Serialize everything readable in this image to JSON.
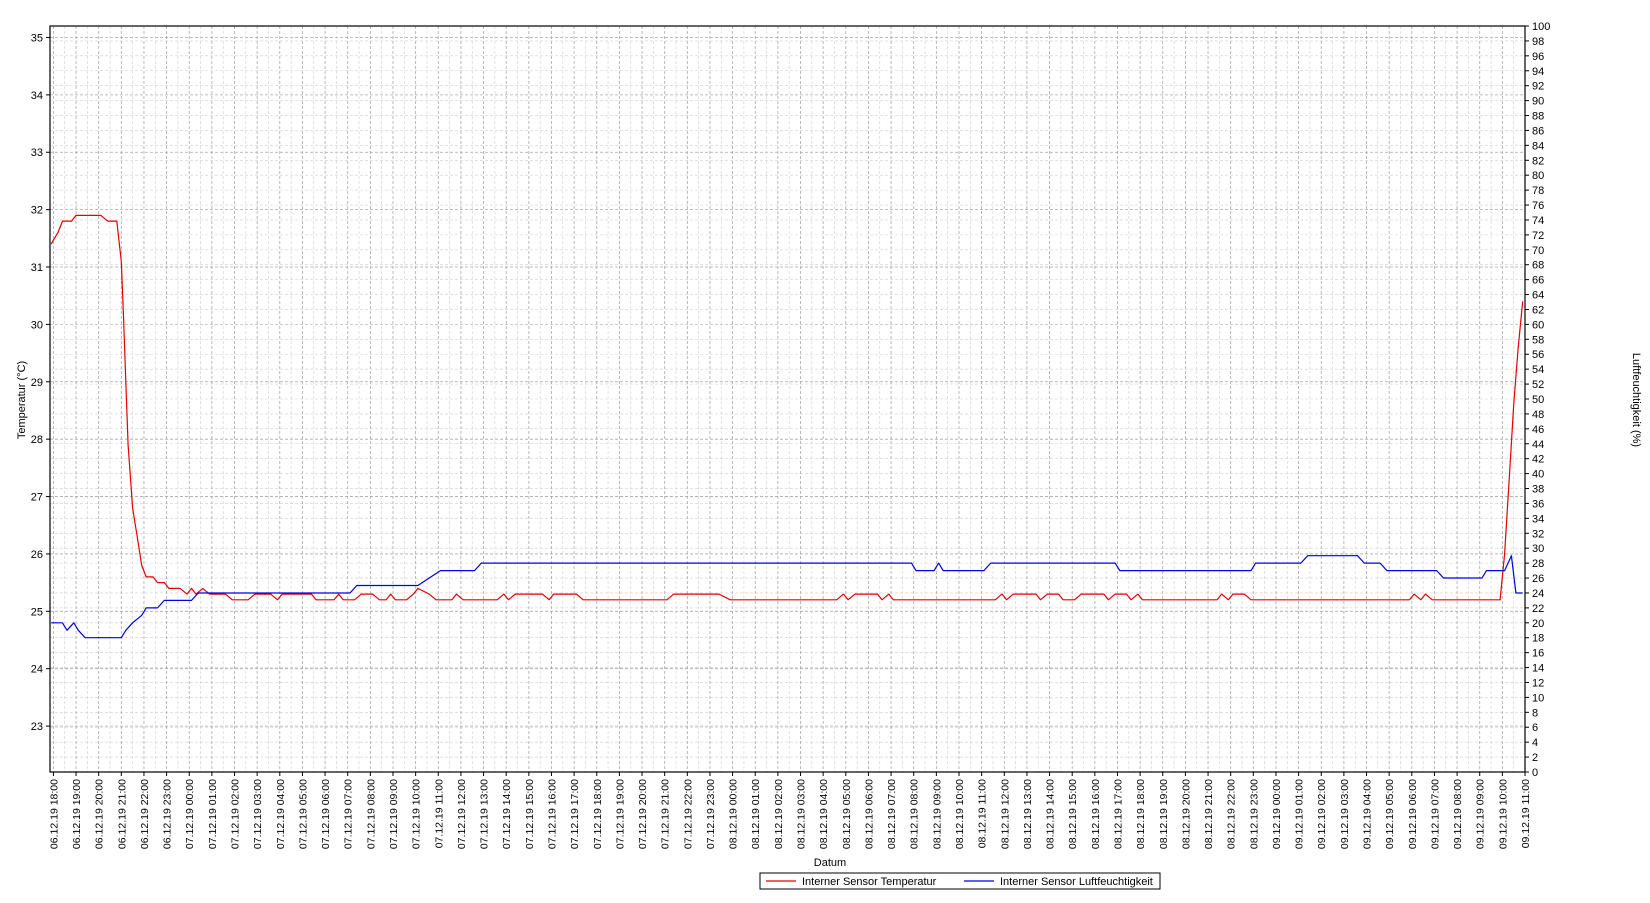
{
  "chart_data": {
    "type": "line",
    "title": "",
    "xlabel": "Datum",
    "ylabel": "Temperatur (°C)",
    "y2label": "Luftfeuchtigkeit (%)",
    "ylim": [
      22.2,
      35.2
    ],
    "y2lim": [
      0,
      100
    ],
    "y_ticks": [
      "23",
      "24",
      "25",
      "26",
      "27",
      "28",
      "29",
      "30",
      "31",
      "32",
      "33",
      "34",
      "35"
    ],
    "y2_ticks": [
      "0",
      "2",
      "4",
      "6",
      "8",
      "10",
      "12",
      "14",
      "16",
      "18",
      "20",
      "22",
      "24",
      "26",
      "28",
      "30",
      "32",
      "34",
      "36",
      "38",
      "40",
      "42",
      "44",
      "46",
      "48",
      "50",
      "52",
      "54",
      "56",
      "58",
      "60",
      "62",
      "64",
      "66",
      "68",
      "70",
      "72",
      "74",
      "76",
      "78",
      "80",
      "82",
      "84",
      "86",
      "88",
      "90",
      "92",
      "94",
      "96",
      "98",
      "100"
    ],
    "x_ticks": [
      "06.12.19 18:00",
      "06.12.19 19:00",
      "06.12.19 20:00",
      "06.12.19 21:00",
      "06.12.19 22:00",
      "06.12.19 23:00",
      "07.12.19 00:00",
      "07.12.19 01:00",
      "07.12.19 02:00",
      "07.12.19 03:00",
      "07.12.19 04:00",
      "07.12.19 05:00",
      "07.12.19 06:00",
      "07.12.19 07:00",
      "07.12.19 08:00",
      "07.12.19 09:00",
      "07.12.19 10:00",
      "07.12.19 11:00",
      "07.12.19 12:00",
      "07.12.19 13:00",
      "07.12.19 14:00",
      "07.12.19 15:00",
      "07.12.19 16:00",
      "07.12.19 17:00",
      "07.12.19 18:00",
      "07.12.19 19:00",
      "07.12.19 20:00",
      "07.12.19 21:00",
      "07.12.19 22:00",
      "07.12.19 23:00",
      "08.12.19 00:00",
      "08.12.19 01:00",
      "08.12.19 02:00",
      "08.12.19 03:00",
      "08.12.19 04:00",
      "08.12.19 05:00",
      "08.12.19 06:00",
      "08.12.19 07:00",
      "08.12.19 08:00",
      "08.12.19 09:00",
      "08.12.19 10:00",
      "08.12.19 11:00",
      "08.12.19 12:00",
      "08.12.19 13:00",
      "08.12.19 14:00",
      "08.12.19 15:00",
      "08.12.19 16:00",
      "08.12.19 17:00",
      "08.12.19 18:00",
      "08.12.19 19:00",
      "08.12.19 20:00",
      "08.12.19 21:00",
      "08.12.19 22:00",
      "08.12.19 23:00",
      "09.12.19 00:00",
      "09.12.19 01:00",
      "09.12.19 02:00",
      "09.12.19 03:00",
      "09.12.19 04:00",
      "09.12.19 05:00",
      "09.12.19 06:00",
      "09.12.19 07:00",
      "09.12.19 08:00",
      "09.12.19 09:00",
      "09.12.19 10:00",
      "09.12.19 11:00"
    ],
    "x_range_hours": [
      -0.15,
      65.0
    ],
    "grid": true,
    "legend_position": "bottom-center",
    "series": [
      {
        "name": "Interner Sensor Temperatur",
        "color": "#e60000",
        "axis": "left",
        "points": [
          [
            -0.1,
            31.4
          ],
          [
            0.2,
            31.6
          ],
          [
            0.4,
            31.8
          ],
          [
            0.8,
            31.8
          ],
          [
            1.0,
            31.9
          ],
          [
            2.0,
            31.9
          ],
          [
            2.1,
            31.9
          ],
          [
            2.4,
            31.8
          ],
          [
            2.8,
            31.8
          ],
          [
            3.0,
            31.1
          ],
          [
            3.1,
            30.1
          ],
          [
            3.2,
            29.0
          ],
          [
            3.3,
            27.9
          ],
          [
            3.5,
            26.8
          ],
          [
            3.7,
            26.3
          ],
          [
            3.9,
            25.8
          ],
          [
            4.1,
            25.6
          ],
          [
            4.4,
            25.6
          ],
          [
            4.6,
            25.5
          ],
          [
            4.9,
            25.5
          ],
          [
            5.1,
            25.4
          ],
          [
            5.6,
            25.4
          ],
          [
            5.9,
            25.3
          ],
          [
            6.1,
            25.4
          ],
          [
            6.3,
            25.3
          ],
          [
            6.6,
            25.4
          ],
          [
            6.9,
            25.3
          ],
          [
            7.6,
            25.3
          ],
          [
            7.9,
            25.2
          ],
          [
            8.6,
            25.2
          ],
          [
            8.9,
            25.3
          ],
          [
            9.6,
            25.3
          ],
          [
            9.9,
            25.2
          ],
          [
            10.1,
            25.3
          ],
          [
            11.4,
            25.3
          ],
          [
            11.6,
            25.2
          ],
          [
            12.4,
            25.2
          ],
          [
            12.6,
            25.3
          ],
          [
            12.8,
            25.2
          ],
          [
            13.3,
            25.2
          ],
          [
            13.6,
            25.3
          ],
          [
            14.1,
            25.3
          ],
          [
            14.4,
            25.2
          ],
          [
            14.7,
            25.2
          ],
          [
            14.9,
            25.3
          ],
          [
            15.1,
            25.2
          ],
          [
            15.6,
            25.2
          ],
          [
            15.9,
            25.3
          ],
          [
            16.1,
            25.4
          ],
          [
            16.6,
            25.3
          ],
          [
            16.9,
            25.2
          ],
          [
            17.6,
            25.2
          ],
          [
            17.8,
            25.3
          ],
          [
            18.1,
            25.2
          ],
          [
            19.6,
            25.2
          ],
          [
            19.9,
            25.3
          ],
          [
            20.1,
            25.2
          ],
          [
            20.4,
            25.3
          ],
          [
            21.6,
            25.3
          ],
          [
            21.9,
            25.2
          ],
          [
            22.1,
            25.3
          ],
          [
            23.1,
            25.3
          ],
          [
            23.4,
            25.2
          ],
          [
            27.1,
            25.2
          ],
          [
            27.4,
            25.3
          ],
          [
            29.4,
            25.3
          ],
          [
            29.9,
            25.2
          ],
          [
            34.6,
            25.2
          ],
          [
            34.9,
            25.3
          ],
          [
            35.1,
            25.2
          ],
          [
            35.4,
            25.3
          ],
          [
            36.4,
            25.3
          ],
          [
            36.6,
            25.2
          ],
          [
            36.9,
            25.3
          ],
          [
            37.1,
            25.2
          ],
          [
            41.6,
            25.2
          ],
          [
            41.9,
            25.3
          ],
          [
            42.1,
            25.2
          ],
          [
            42.4,
            25.3
          ],
          [
            43.4,
            25.3
          ],
          [
            43.6,
            25.2
          ],
          [
            43.9,
            25.3
          ],
          [
            44.4,
            25.3
          ],
          [
            44.6,
            25.2
          ],
          [
            45.1,
            25.2
          ],
          [
            45.4,
            25.3
          ],
          [
            46.4,
            25.3
          ],
          [
            46.6,
            25.2
          ],
          [
            46.9,
            25.3
          ],
          [
            47.4,
            25.3
          ],
          [
            47.6,
            25.2
          ],
          [
            47.9,
            25.3
          ],
          [
            48.1,
            25.2
          ],
          [
            51.4,
            25.2
          ],
          [
            51.6,
            25.3
          ],
          [
            51.9,
            25.2
          ],
          [
            52.1,
            25.3
          ],
          [
            52.6,
            25.3
          ],
          [
            52.9,
            25.2
          ],
          [
            59.9,
            25.2
          ],
          [
            60.1,
            25.3
          ],
          [
            60.4,
            25.2
          ],
          [
            60.6,
            25.3
          ],
          [
            60.9,
            25.2
          ],
          [
            63.9,
            25.2
          ],
          [
            64.1,
            26.0
          ],
          [
            64.3,
            27.3
          ],
          [
            64.5,
            28.6
          ],
          [
            64.7,
            29.6
          ],
          [
            64.9,
            30.4
          ]
        ]
      },
      {
        "name": "Interner Sensor Luftfeuchtigkeit",
        "color": "#0000e6",
        "axis": "right",
        "points": [
          [
            -0.1,
            20
          ],
          [
            0.4,
            20
          ],
          [
            0.6,
            19
          ],
          [
            0.9,
            20
          ],
          [
            1.1,
            19
          ],
          [
            1.4,
            18
          ],
          [
            3.0,
            18
          ],
          [
            3.2,
            19
          ],
          [
            3.5,
            20
          ],
          [
            3.9,
            21
          ],
          [
            4.1,
            22
          ],
          [
            4.6,
            22
          ],
          [
            4.9,
            23
          ],
          [
            6.1,
            23
          ],
          [
            6.4,
            24
          ],
          [
            12.9,
            24
          ],
          [
            13.1,
            24
          ],
          [
            13.4,
            25
          ],
          [
            16.1,
            25
          ],
          [
            16.6,
            26
          ],
          [
            17.1,
            27
          ],
          [
            18.6,
            27
          ],
          [
            18.9,
            28
          ],
          [
            37.9,
            28
          ],
          [
            38.1,
            27
          ],
          [
            38.9,
            27
          ],
          [
            39.1,
            28
          ],
          [
            39.3,
            27
          ],
          [
            41.1,
            27
          ],
          [
            41.4,
            28
          ],
          [
            46.9,
            28
          ],
          [
            47.1,
            27
          ],
          [
            52.9,
            27
          ],
          [
            53.1,
            28
          ],
          [
            55.1,
            28
          ],
          [
            55.4,
            29
          ],
          [
            57.6,
            29
          ],
          [
            57.9,
            28
          ],
          [
            58.6,
            28
          ],
          [
            58.9,
            27
          ],
          [
            61.1,
            27
          ],
          [
            61.4,
            26
          ],
          [
            63.1,
            26
          ],
          [
            63.3,
            27
          ],
          [
            64.1,
            27
          ],
          [
            64.4,
            29
          ],
          [
            64.6,
            24
          ],
          [
            64.9,
            24
          ]
        ]
      }
    ]
  }
}
